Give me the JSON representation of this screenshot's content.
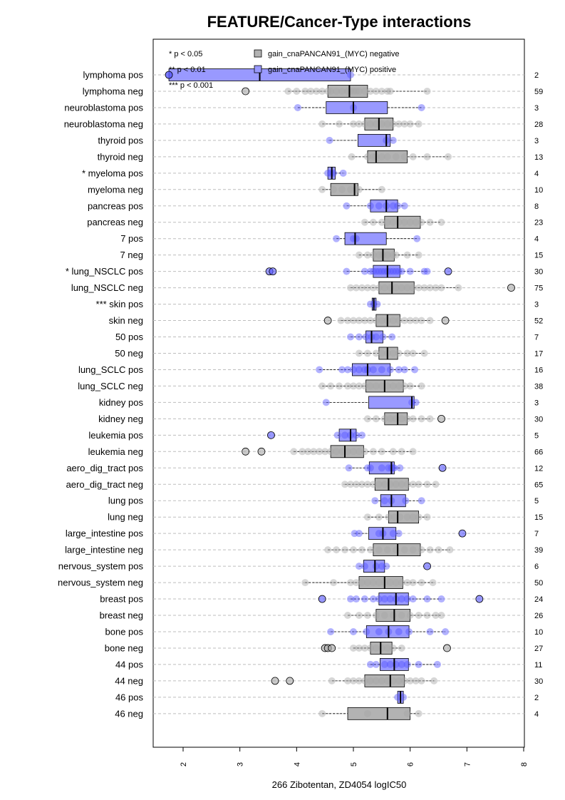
{
  "chart_data": {
    "type": "box",
    "title": "FEATURE/Cancer-Type interactions",
    "xlabel": "266 Zibotentan, ZD4054 logIC50",
    "xlim": [
      1.5,
      8.0
    ],
    "xticks": [
      2,
      3,
      4,
      5,
      6,
      7,
      8
    ],
    "xtick_labels": [
      "2",
      "3",
      "4",
      "5",
      "6",
      "7",
      "8"
    ],
    "grid": "horizontal dashed",
    "legend": {
      "placement": "top-left",
      "significance": [
        "* p < 0.05",
        "** p < 0.01",
        "*** p < 0.001"
      ],
      "series": [
        {
          "name": "gain_cnaPANCAN91_(MYC) negative",
          "color": "#b3b3b3"
        },
        {
          "name": "gain_cnaPANCAN91_(MYC) positive",
          "color": "#9999ff"
        }
      ]
    },
    "series_colors": {
      "pos_box": "#9999ff",
      "neg_box": "#b3b3b3",
      "pos_point": "#5555ff",
      "neg_point": "#a6a6a6"
    },
    "rows": [
      {
        "label": "lymphoma pos",
        "group": "pos",
        "n": "2",
        "q1": 1.75,
        "median": 3.35,
        "q3": 4.95,
        "wlo": 1.75,
        "whi": 4.95,
        "points": [
          1.75,
          4.95
        ],
        "outliers": [
          1.75
        ]
      },
      {
        "label": "lymphoma neg",
        "group": "neg",
        "n": "59",
        "q1": 4.55,
        "median": 4.93,
        "q3": 5.25,
        "wlo": 3.85,
        "whi": 6.3,
        "points": [
          3.85,
          4.0,
          4.15,
          4.25,
          4.35,
          4.45,
          4.55,
          4.6,
          4.7,
          4.8,
          4.9,
          4.95,
          5.0,
          5.05,
          5.1,
          5.2,
          5.3,
          5.4,
          5.5,
          5.6,
          5.65,
          6.3
        ],
        "outliers": [
          3.1
        ]
      },
      {
        "label": "neuroblastoma pos",
        "group": "pos",
        "n": "3",
        "q1": 4.52,
        "median": 5.0,
        "q3": 5.6,
        "wlo": 4.02,
        "whi": 6.2,
        "points": [
          4.02,
          5.0,
          6.2
        ],
        "outliers": []
      },
      {
        "label": "neuroblastoma neg",
        "group": "neg",
        "n": "28",
        "q1": 5.2,
        "median": 5.45,
        "q3": 5.7,
        "wlo": 4.45,
        "whi": 6.15,
        "points": [
          4.45,
          4.75,
          5.0,
          5.1,
          5.2,
          5.3,
          5.4,
          5.5,
          5.6,
          5.7,
          5.8,
          5.9,
          6.0,
          6.15
        ],
        "outliers": []
      },
      {
        "label": "thyroid pos",
        "group": "pos",
        "n": "3",
        "q1": 5.08,
        "median": 5.58,
        "q3": 5.65,
        "wlo": 4.58,
        "whi": 5.7,
        "points": [
          4.58,
          5.58,
          5.7
        ],
        "outliers": []
      },
      {
        "label": "thyroid neg",
        "group": "neg",
        "n": "13",
        "q1": 5.25,
        "median": 5.4,
        "q3": 5.95,
        "wlo": 4.97,
        "whi": 6.67,
        "points": [
          4.97,
          5.25,
          5.35,
          5.4,
          5.5,
          5.6,
          5.75,
          5.9,
          6.05,
          6.3,
          6.67
        ],
        "outliers": []
      },
      {
        "label": "* myeloma pos",
        "group": "pos",
        "n": "4",
        "q1": 4.55,
        "median": 4.62,
        "q3": 4.68,
        "wlo": 4.55,
        "whi": 4.82,
        "points": [
          4.55,
          4.6,
          4.65,
          4.82
        ],
        "outliers": []
      },
      {
        "label": "myeloma neg",
        "group": "neg",
        "n": "10",
        "q1": 4.6,
        "median": 5.02,
        "q3": 5.08,
        "wlo": 4.45,
        "whi": 5.5,
        "points": [
          4.45,
          4.65,
          4.8,
          4.95,
          5.05,
          5.1,
          5.5
        ],
        "outliers": []
      },
      {
        "label": "pancreas pos",
        "group": "pos",
        "n": "8",
        "q1": 5.3,
        "median": 5.58,
        "q3": 5.78,
        "wlo": 4.88,
        "whi": 5.9,
        "points": [
          4.88,
          5.3,
          5.45,
          5.58,
          5.7,
          5.78,
          5.9
        ],
        "outliers": []
      },
      {
        "label": "pancreas neg",
        "group": "neg",
        "n": "23",
        "q1": 5.55,
        "median": 5.78,
        "q3": 6.18,
        "wlo": 5.2,
        "whi": 6.55,
        "points": [
          5.2,
          5.35,
          5.5,
          5.6,
          5.7,
          5.8,
          5.9,
          6.0,
          6.1,
          6.2,
          6.35,
          6.55
        ],
        "outliers": []
      },
      {
        "label": "7 pos",
        "group": "pos",
        "n": "4",
        "q1": 4.85,
        "median": 5.03,
        "q3": 5.58,
        "wlo": 4.7,
        "whi": 6.12,
        "points": [
          4.7,
          5.0,
          5.05,
          6.12
        ],
        "outliers": []
      },
      {
        "label": "7 neg",
        "group": "neg",
        "n": "15",
        "q1": 5.35,
        "median": 5.52,
        "q3": 5.72,
        "wlo": 5.1,
        "whi": 6.15,
        "points": [
          5.1,
          5.25,
          5.35,
          5.45,
          5.52,
          5.6,
          5.7,
          5.75,
          5.95,
          6.15
        ],
        "outliers": []
      },
      {
        "label": "* lung_NSCLC pos",
        "group": "pos",
        "n": "30",
        "q1": 5.35,
        "median": 5.6,
        "q3": 5.82,
        "wlo": 4.88,
        "whi": 6.3,
        "points": [
          4.88,
          5.2,
          5.3,
          5.35,
          5.4,
          5.45,
          5.5,
          5.55,
          5.6,
          5.65,
          5.7,
          5.75,
          5.8,
          5.85,
          6.0,
          6.25,
          6.3
        ],
        "outliers": [
          3.52,
          3.58,
          6.67
        ]
      },
      {
        "label": "lung_NSCLC neg",
        "group": "neg",
        "n": "75",
        "q1": 5.45,
        "median": 5.68,
        "q3": 6.07,
        "wlo": 4.95,
        "whi": 6.85,
        "points": [
          4.95,
          5.05,
          5.15,
          5.25,
          5.35,
          5.45,
          5.55,
          5.65,
          5.75,
          5.85,
          5.95,
          6.05,
          6.15,
          6.25,
          6.35,
          6.45,
          6.55,
          6.85
        ],
        "outliers": [
          7.78
        ]
      },
      {
        "label": "*** skin pos",
        "group": "pos",
        "n": "3",
        "q1": 5.33,
        "median": 5.36,
        "q3": 5.4,
        "wlo": 5.3,
        "whi": 5.42,
        "points": [
          5.3,
          5.36,
          5.42
        ],
        "outliers": []
      },
      {
        "label": "skin neg",
        "group": "neg",
        "n": "52",
        "q1": 5.4,
        "median": 5.6,
        "q3": 5.82,
        "wlo": 4.78,
        "whi": 6.35,
        "points": [
          4.78,
          4.9,
          5.0,
          5.1,
          5.2,
          5.3,
          5.4,
          5.5,
          5.6,
          5.7,
          5.8,
          5.9,
          6.0,
          6.1,
          6.2,
          6.35
        ],
        "outliers": [
          4.55,
          6.62
        ]
      },
      {
        "label": "50 pos",
        "group": "pos",
        "n": "7",
        "q1": 5.22,
        "median": 5.32,
        "q3": 5.52,
        "wlo": 4.95,
        "whi": 5.68,
        "points": [
          4.95,
          5.1,
          5.22,
          5.32,
          5.4,
          5.52,
          5.68
        ],
        "outliers": []
      },
      {
        "label": "50 neg",
        "group": "neg",
        "n": "17",
        "q1": 5.45,
        "median": 5.6,
        "q3": 5.78,
        "wlo": 5.1,
        "whi": 6.25,
        "points": [
          5.1,
          5.25,
          5.4,
          5.5,
          5.6,
          5.7,
          5.8,
          5.95,
          6.05,
          6.25
        ],
        "outliers": []
      },
      {
        "label": "lung_SCLC pos",
        "group": "pos",
        "n": "16",
        "q1": 4.98,
        "median": 5.25,
        "q3": 5.65,
        "wlo": 4.4,
        "whi": 6.08,
        "points": [
          4.4,
          4.8,
          4.9,
          5.0,
          5.1,
          5.2,
          5.25,
          5.35,
          5.5,
          5.65,
          5.8,
          5.9,
          6.08
        ],
        "outliers": []
      },
      {
        "label": "lung_SCLC neg",
        "group": "neg",
        "n": "38",
        "q1": 5.22,
        "median": 5.55,
        "q3": 5.88,
        "wlo": 4.45,
        "whi": 6.2,
        "points": [
          4.45,
          4.6,
          4.75,
          4.9,
          5.0,
          5.1,
          5.2,
          5.3,
          5.4,
          5.5,
          5.6,
          5.7,
          5.8,
          5.9,
          6.0,
          6.2
        ],
        "outliers": []
      },
      {
        "label": "kidney pos",
        "group": "pos",
        "n": "3",
        "q1": 5.27,
        "median": 6.03,
        "q3": 6.07,
        "wlo": 4.52,
        "whi": 6.1,
        "points": [
          4.52,
          6.03,
          6.1
        ],
        "outliers": []
      },
      {
        "label": "kidney neg",
        "group": "neg",
        "n": "30",
        "q1": 5.55,
        "median": 5.78,
        "q3": 5.95,
        "wlo": 5.25,
        "whi": 6.35,
        "points": [
          5.25,
          5.4,
          5.55,
          5.65,
          5.75,
          5.85,
          5.95,
          6.05,
          6.2,
          6.35
        ],
        "outliers": [
          6.55
        ]
      },
      {
        "label": "leukemia pos",
        "group": "pos",
        "n": "5",
        "q1": 4.75,
        "median": 4.95,
        "q3": 5.05,
        "wlo": 4.72,
        "whi": 5.15,
        "points": [
          4.72,
          4.85,
          4.95,
          5.05,
          5.15
        ],
        "outliers": [
          3.55
        ]
      },
      {
        "label": "leukemia neg",
        "group": "neg",
        "n": "66",
        "q1": 4.6,
        "median": 4.85,
        "q3": 5.18,
        "wlo": 3.95,
        "whi": 6.05,
        "points": [
          3.95,
          4.1,
          4.2,
          4.3,
          4.4,
          4.5,
          4.6,
          4.7,
          4.8,
          4.9,
          5.0,
          5.1,
          5.2,
          5.35,
          5.5,
          5.7,
          5.85,
          6.05
        ],
        "outliers": [
          3.1,
          3.38
        ]
      },
      {
        "label": "aero_dig_tract pos",
        "group": "pos",
        "n": "12",
        "q1": 5.28,
        "median": 5.67,
        "q3": 5.72,
        "wlo": 4.92,
        "whi": 5.82,
        "points": [
          4.92,
          5.25,
          5.3,
          5.5,
          5.62,
          5.67,
          5.7,
          5.72,
          5.82
        ],
        "outliers": [
          6.57
        ]
      },
      {
        "label": "aero_dig_tract neg",
        "group": "neg",
        "n": "65",
        "q1": 5.38,
        "median": 5.62,
        "q3": 5.97,
        "wlo": 4.85,
        "whi": 6.45,
        "points": [
          4.85,
          4.95,
          5.05,
          5.15,
          5.25,
          5.35,
          5.45,
          5.55,
          5.65,
          5.75,
          5.85,
          5.95,
          6.05,
          6.15,
          6.3,
          6.45
        ],
        "outliers": []
      },
      {
        "label": "lung pos",
        "group": "pos",
        "n": "5",
        "q1": 5.48,
        "median": 5.67,
        "q3": 5.92,
        "wlo": 5.38,
        "whi": 6.2,
        "points": [
          5.38,
          5.55,
          5.67,
          5.92,
          6.2
        ],
        "outliers": []
      },
      {
        "label": "lung neg",
        "group": "neg",
        "n": "15",
        "q1": 5.62,
        "median": 5.78,
        "q3": 6.15,
        "wlo": 5.25,
        "whi": 6.3,
        "points": [
          5.25,
          5.45,
          5.62,
          5.72,
          5.82,
          5.95,
          6.05,
          6.15,
          6.3
        ],
        "outliers": []
      },
      {
        "label": "large_intestine pos",
        "group": "pos",
        "n": "7",
        "q1": 5.27,
        "median": 5.52,
        "q3": 5.75,
        "wlo": 5.02,
        "whi": 5.82,
        "points": [
          5.02,
          5.1,
          5.45,
          5.52,
          5.7,
          5.8
        ],
        "outliers": [
          6.92
        ]
      },
      {
        "label": "large_intestine neg",
        "group": "neg",
        "n": "39",
        "q1": 5.35,
        "median": 5.78,
        "q3": 6.18,
        "wlo": 4.55,
        "whi": 6.7,
        "points": [
          4.55,
          4.7,
          4.85,
          5.0,
          5.15,
          5.3,
          5.45,
          5.6,
          5.75,
          5.9,
          6.05,
          6.2,
          6.35,
          6.5,
          6.7
        ],
        "outliers": []
      },
      {
        "label": "nervous_system pos",
        "group": "pos",
        "n": "6",
        "q1": 5.18,
        "median": 5.38,
        "q3": 5.55,
        "wlo": 5.1,
        "whi": 5.58,
        "points": [
          5.1,
          5.2,
          5.4,
          5.5,
          5.58
        ],
        "outliers": [
          6.3
        ]
      },
      {
        "label": "nervous_system neg",
        "group": "neg",
        "n": "50",
        "q1": 5.1,
        "median": 5.55,
        "q3": 5.87,
        "wlo": 4.15,
        "whi": 6.4,
        "points": [
          4.15,
          4.65,
          4.95,
          5.05,
          5.15,
          5.25,
          5.35,
          5.45,
          5.55,
          5.65,
          5.75,
          5.85,
          5.95,
          6.05,
          6.2,
          6.4
        ],
        "outliers": []
      },
      {
        "label": "breast pos",
        "group": "pos",
        "n": "24",
        "q1": 5.45,
        "median": 5.75,
        "q3": 5.97,
        "wlo": 4.95,
        "whi": 6.55,
        "points": [
          4.95,
          5.05,
          5.2,
          5.35,
          5.45,
          5.55,
          5.65,
          5.75,
          5.85,
          5.95,
          6.05,
          6.3,
          6.55
        ],
        "outliers": [
          4.45,
          7.22
        ]
      },
      {
        "label": "breast neg",
        "group": "neg",
        "n": "26",
        "q1": 5.4,
        "median": 5.72,
        "q3": 6.0,
        "wlo": 4.9,
        "whi": 6.55,
        "points": [
          4.9,
          5.1,
          5.25,
          5.4,
          5.55,
          5.7,
          5.85,
          6.0,
          6.15,
          6.3,
          6.45,
          6.55
        ],
        "outliers": []
      },
      {
        "label": "bone pos",
        "group": "pos",
        "n": "10",
        "q1": 5.23,
        "median": 5.62,
        "q3": 5.98,
        "wlo": 4.6,
        "whi": 6.62,
        "points": [
          4.6,
          5.0,
          5.23,
          5.45,
          5.62,
          5.8,
          5.98,
          6.35,
          6.62
        ],
        "outliers": []
      },
      {
        "label": "bone neg",
        "group": "neg",
        "n": "27",
        "q1": 5.3,
        "median": 5.48,
        "q3": 5.68,
        "wlo": 5.0,
        "whi": 5.85,
        "points": [
          5.0,
          5.1,
          5.2,
          5.3,
          5.4,
          5.5,
          5.6,
          5.7,
          5.85
        ],
        "outliers": [
          4.5,
          4.55,
          4.62,
          6.65
        ]
      },
      {
        "label": "44 pos",
        "group": "pos",
        "n": "11",
        "q1": 5.47,
        "median": 5.72,
        "q3": 5.97,
        "wlo": 5.3,
        "whi": 6.48,
        "points": [
          5.3,
          5.4,
          5.55,
          5.65,
          5.75,
          5.85,
          5.95,
          6.15,
          6.48
        ],
        "outliers": []
      },
      {
        "label": "44 neg",
        "group": "neg",
        "n": "30",
        "q1": 5.2,
        "median": 5.65,
        "q3": 5.9,
        "wlo": 4.62,
        "whi": 6.42,
        "points": [
          4.62,
          4.9,
          5.0,
          5.1,
          5.2,
          5.3,
          5.4,
          5.5,
          5.6,
          5.7,
          5.8,
          5.9,
          6.0,
          6.1,
          6.2,
          6.42
        ],
        "outliers": [
          3.62,
          3.88
        ]
      },
      {
        "label": "46 pos",
        "group": "pos",
        "n": "2",
        "q1": 5.78,
        "median": 5.83,
        "q3": 5.88,
        "wlo": 5.78,
        "whi": 5.88,
        "points": [
          5.78,
          5.88
        ],
        "outliers": []
      },
      {
        "label": "46 neg",
        "group": "neg",
        "n": "4",
        "q1": 4.9,
        "median": 5.6,
        "q3": 6.0,
        "wlo": 4.45,
        "whi": 6.15,
        "points": [
          4.45,
          5.25,
          5.95,
          6.15
        ],
        "outliers": []
      }
    ]
  }
}
